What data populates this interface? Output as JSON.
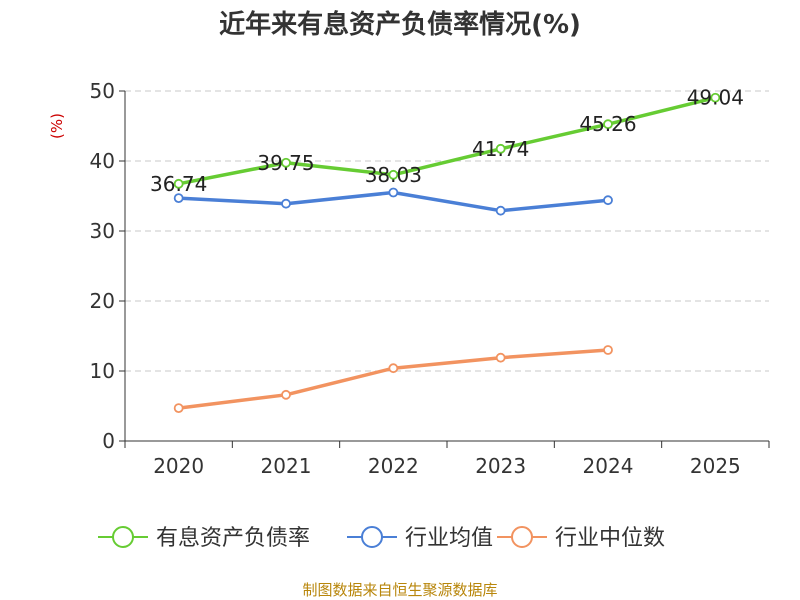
{
  "chart_data": {
    "type": "line",
    "title": "近年来有息资产负债率情况(%)",
    "unit": "(%)",
    "categories": [
      "2020",
      "2021",
      "2022",
      "2023",
      "2024",
      "2025"
    ],
    "ylim": [
      0,
      50
    ],
    "yticks": [
      0,
      10,
      20,
      30,
      40,
      50
    ],
    "grid": true,
    "legend_position": "bottom",
    "series": [
      {
        "name": "有息资产负债率",
        "color": "#66cc33",
        "values": [
          36.74,
          39.75,
          38.03,
          41.74,
          45.26,
          49.04
        ],
        "show_labels": true
      },
      {
        "name": "行业均值",
        "color": "#4a7fd6",
        "values": [
          34.7,
          33.9,
          35.5,
          32.9,
          34.4,
          null
        ],
        "show_labels": false
      },
      {
        "name": "行业中位数",
        "color": "#f29360",
        "values": [
          4.7,
          6.6,
          10.4,
          11.9,
          13.0,
          null
        ],
        "show_labels": false
      }
    ],
    "labels": [
      "36.74",
      "39.75",
      "38.03",
      "41.74",
      "45.26",
      "49.04"
    ],
    "source": "制图数据来自恒生聚源数据库"
  }
}
